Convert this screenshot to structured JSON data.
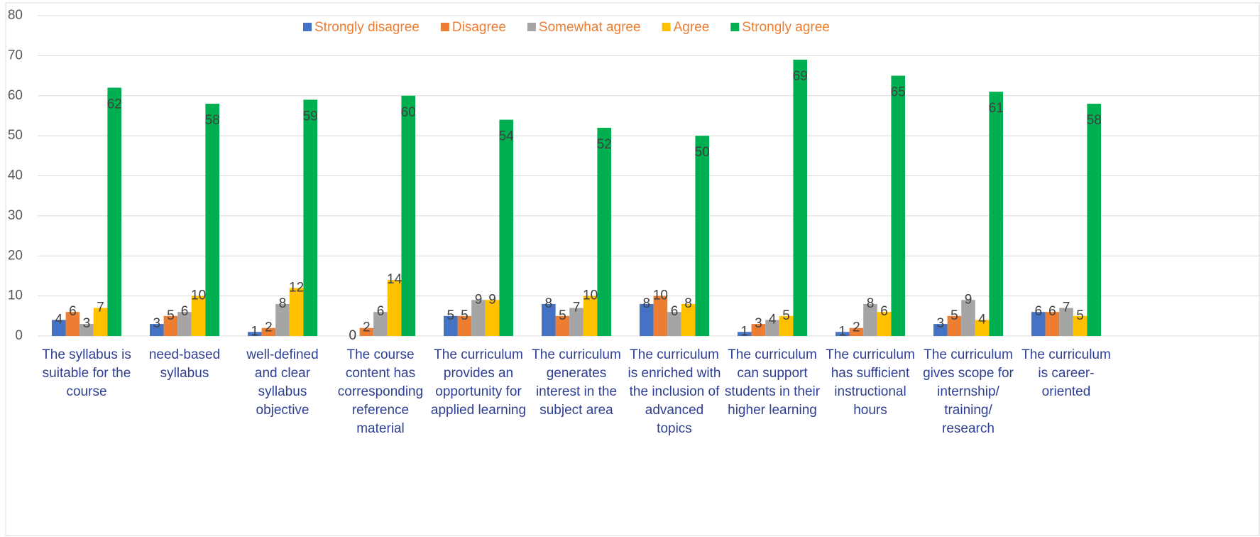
{
  "chart_data": {
    "type": "bar",
    "categories": [
      "The syllabus is suitable for the course",
      "need-based syllabus",
      "well-defined and clear syllabus objective",
      "The course content has corresponding reference material",
      "The curriculum provides an opportunity for applied learning",
      "The curriculum generates interest in the subject area",
      "The curriculum is enriched with the inclusion of advanced topics",
      "The curriculum can support students in their higher learning",
      "The curriculum has sufficient instructional hours",
      "The curriculum gives scope for internship/ training/ research",
      "The curriculum is career-oriented"
    ],
    "series": [
      {
        "name": "Strongly disagree",
        "color": "#4472c4",
        "values": [
          4,
          3,
          1,
          0,
          5,
          8,
          8,
          1,
          1,
          3,
          6
        ]
      },
      {
        "name": "Disagree",
        "color": "#ed7d31",
        "values": [
          6,
          5,
          2,
          2,
          5,
          5,
          10,
          3,
          2,
          5,
          6
        ]
      },
      {
        "name": "Somewhat agree",
        "color": "#a5a5a5",
        "values": [
          3,
          6,
          8,
          6,
          9,
          7,
          6,
          4,
          8,
          9,
          7
        ]
      },
      {
        "name": "Agree",
        "color": "#ffc000",
        "values": [
          7,
          10,
          12,
          14,
          9,
          10,
          8,
          5,
          6,
          4,
          5
        ]
      },
      {
        "name": "Strongly agree",
        "color": "#00b050",
        "values": [
          62,
          58,
          59,
          60,
          54,
          52,
          50,
          69,
          65,
          61,
          58
        ]
      }
    ],
    "ylim": [
      0,
      80
    ],
    "yticks": [
      0,
      10,
      20,
      30,
      40,
      50,
      60,
      70,
      80
    ],
    "grid": true,
    "legend": "top"
  }
}
